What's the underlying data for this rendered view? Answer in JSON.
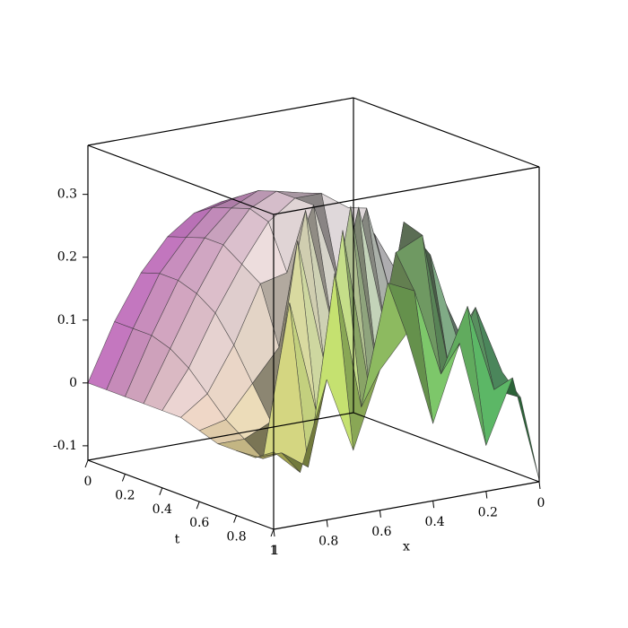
{
  "chart_data": {
    "type": "surface",
    "t_label": "t",
    "x_label": "x",
    "t": [
      0,
      0.1,
      0.2,
      0.3,
      0.4,
      0.5,
      0.6,
      0.7,
      0.8,
      0.9,
      1
    ],
    "x": [
      0,
      0.1,
      0.2,
      0.3,
      0.4,
      0.5,
      0.6,
      0.7,
      0.8,
      0.9,
      1
    ],
    "z": [
      [
        0.0,
        0.09,
        0.16,
        0.21,
        0.24,
        0.25,
        0.24,
        0.21,
        0.16,
        0.09,
        0.0
      ],
      [
        0.02,
        0.11,
        0.18,
        0.23,
        0.26,
        0.27,
        0.26,
        0.22,
        0.17,
        0.09,
        0.0
      ],
      [
        0.03,
        0.12,
        0.2,
        0.25,
        0.28,
        0.29,
        0.27,
        0.23,
        0.17,
        0.09,
        0.0
      ],
      [
        0.04,
        0.13,
        0.21,
        0.26,
        0.29,
        0.3,
        0.28,
        0.23,
        0.16,
        0.08,
        0.0
      ],
      [
        0.05,
        0.14,
        0.22,
        0.27,
        0.3,
        0.3,
        0.27,
        0.21,
        0.14,
        0.06,
        0.0
      ],
      [
        0.05,
        0.15,
        0.12,
        0.28,
        0.16,
        0.3,
        0.2,
        0.19,
        0.1,
        0.03,
        0.0
      ],
      [
        0.05,
        0.15,
        0.22,
        0.1,
        0.3,
        0.12,
        0.31,
        0.1,
        0.05,
        0.0,
        -0.01
      ],
      [
        0.04,
        0.08,
        0.22,
        0.28,
        0.05,
        0.32,
        0.08,
        0.28,
        0.0,
        -0.02,
        -0.02
      ],
      [
        0.03,
        0.14,
        0.05,
        0.27,
        0.25,
        0.04,
        0.3,
        0.02,
        0.2,
        -0.04,
        -0.02
      ],
      [
        0.0,
        0.02,
        0.16,
        0.06,
        0.2,
        0.22,
        0.03,
        0.25,
        -0.05,
        -0.02,
        -0.02
      ],
      [
        -0.12,
        0.05,
        -0.05,
        0.12,
        0.0,
        0.15,
        0.1,
        -0.02,
        0.1,
        -0.04,
        0.0
      ]
    ],
    "tlim": [
      0,
      1
    ],
    "xlim": [
      0,
      1
    ],
    "zlim": [
      -0.123,
      0.378
    ],
    "tticks": [
      0,
      0.2,
      0.4,
      0.6,
      0.8,
      1
    ],
    "xticks": [
      0,
      0.2,
      0.4,
      0.6,
      0.8,
      1
    ],
    "zticks": [
      -0.1,
      0,
      0.1,
      0.2,
      0.3
    ],
    "box": true,
    "colors": {
      "start": "#eb82eb",
      "end_x_high": "#fafa6e",
      "end_x_low": "#50e178",
      "middle": "#ffffff"
    }
  }
}
